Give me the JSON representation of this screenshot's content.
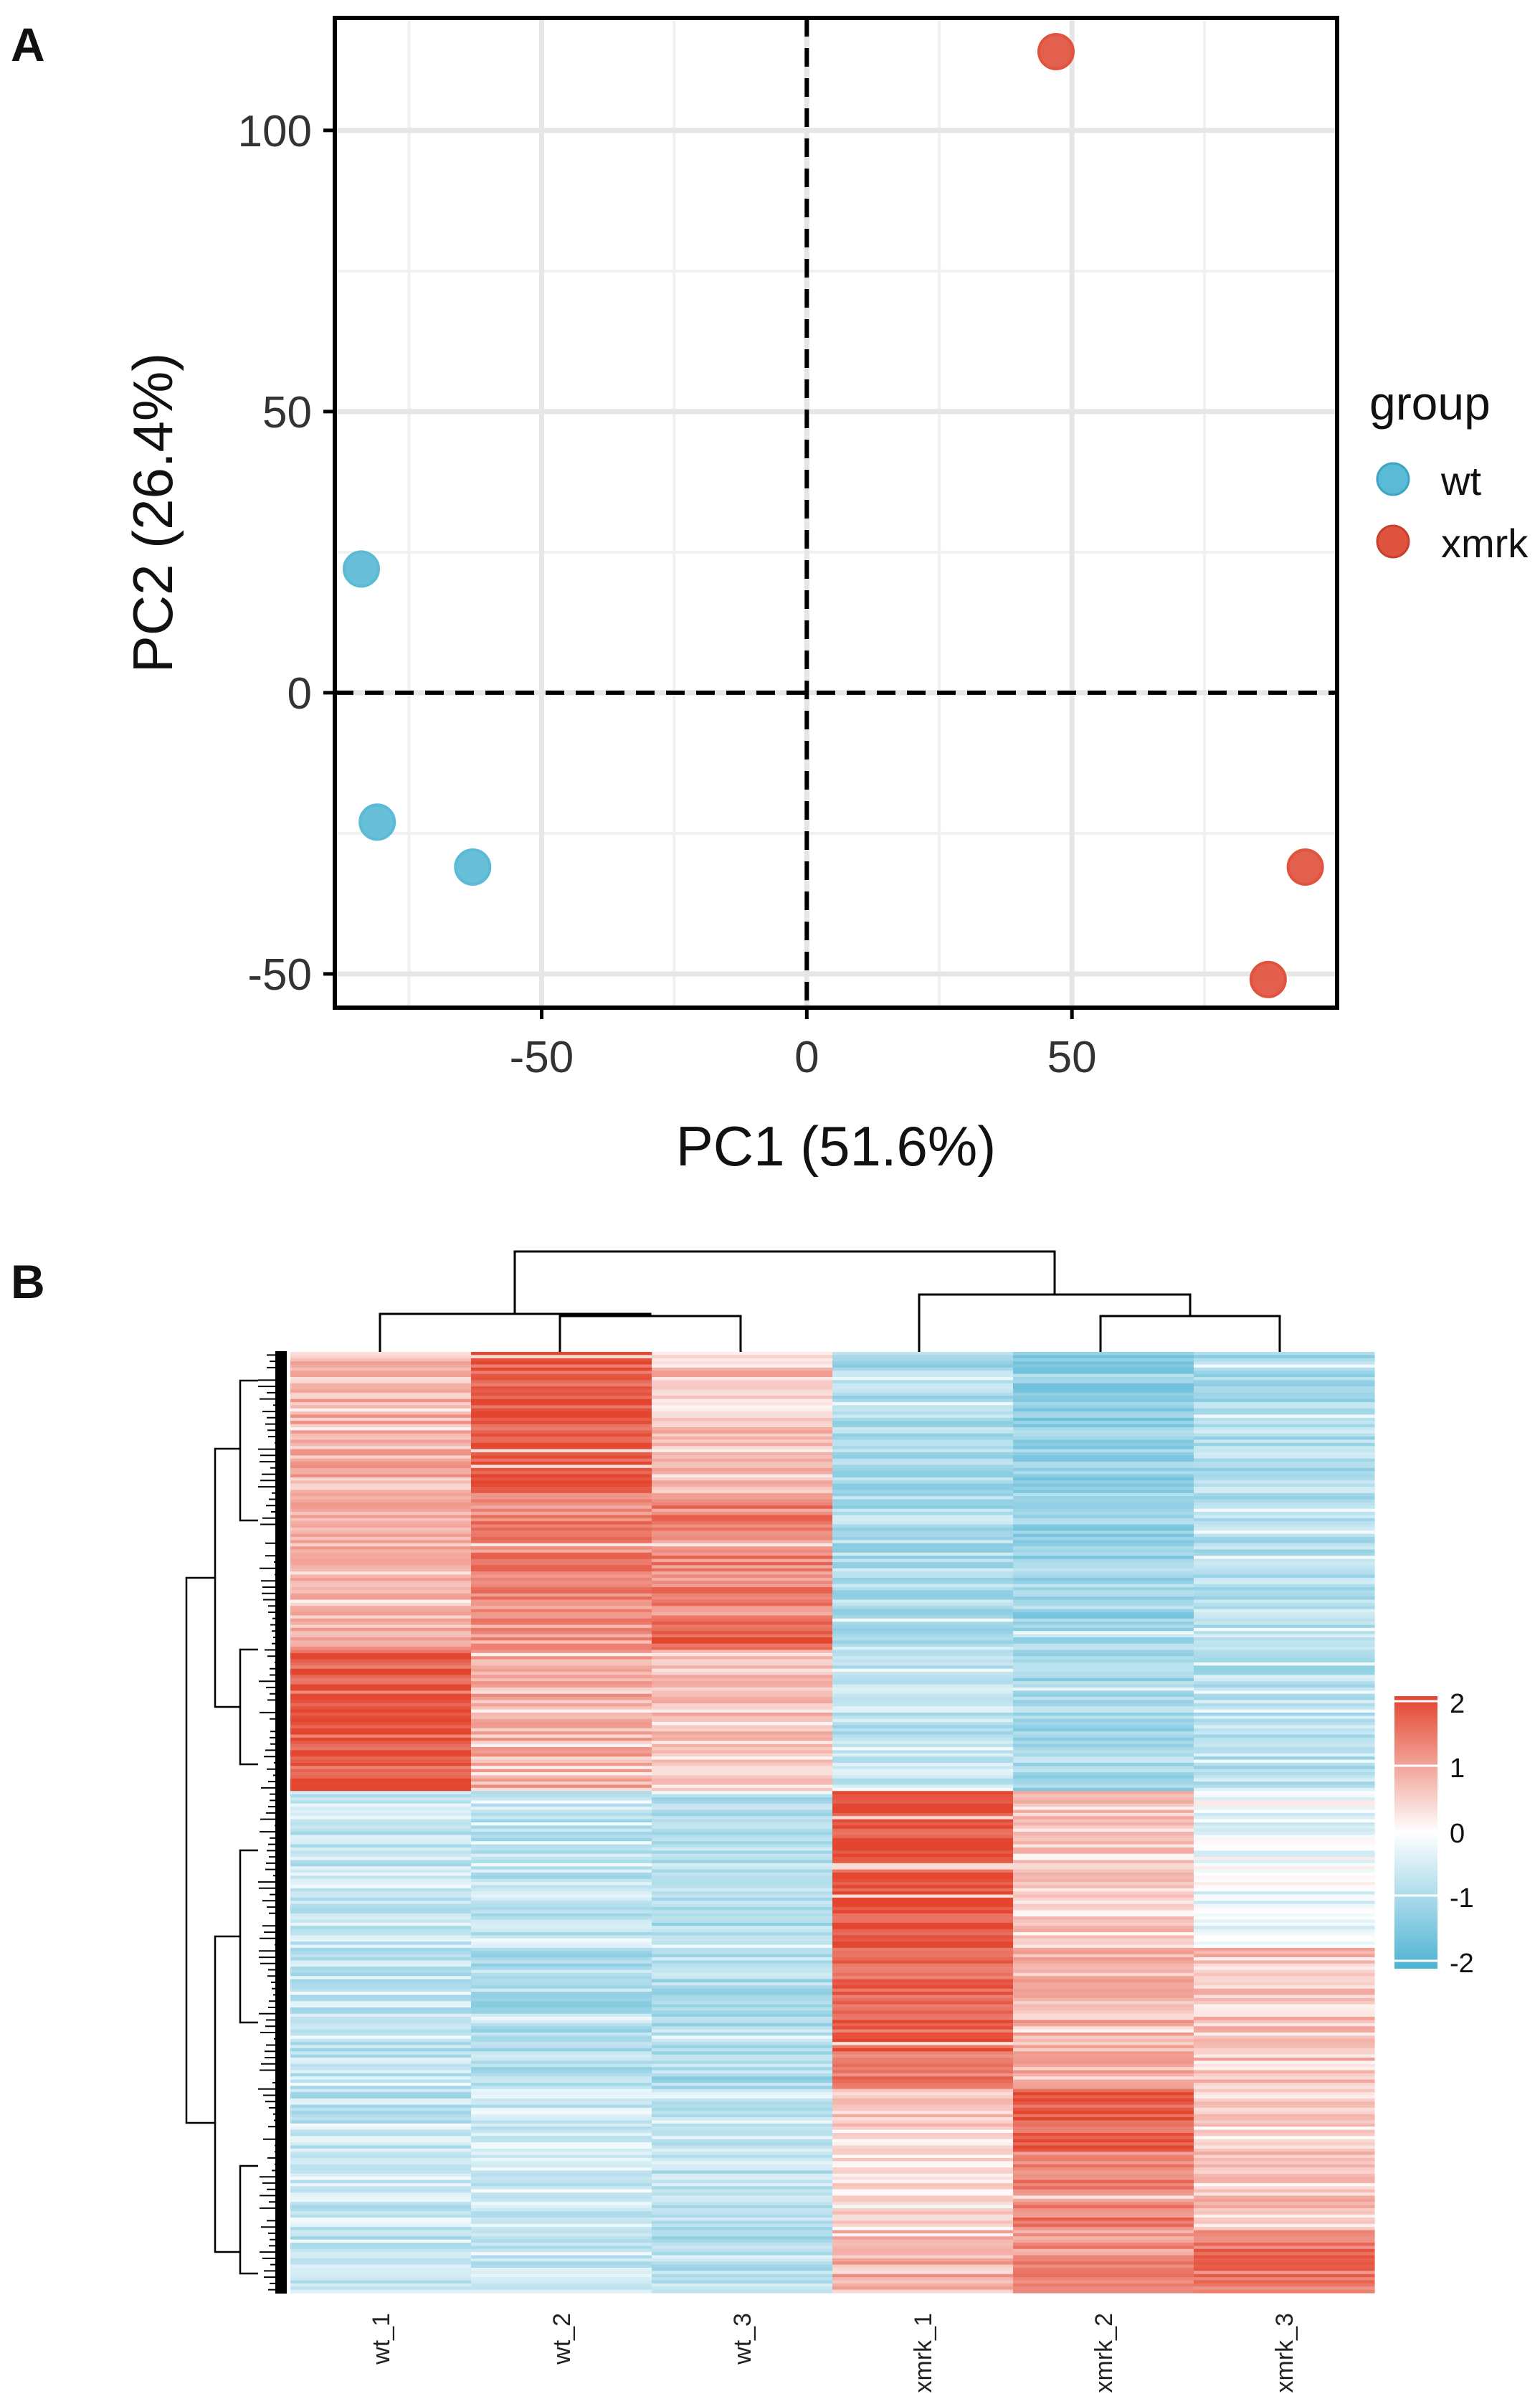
{
  "panels": {
    "a_label": "A",
    "b_label": "B"
  },
  "chart_data": [
    {
      "type": "scatter",
      "title": "",
      "xlabel": "PC1 (51.6%)",
      "ylabel": "PC2 (26.4%)",
      "xlim": [
        -89,
        100
      ],
      "ylim": [
        -56,
        120
      ],
      "xticks": [
        -50,
        0,
        50
      ],
      "yticks": [
        -50,
        0,
        50,
        100
      ],
      "xtick_labels": [
        "-50",
        "0",
        "50"
      ],
      "ytick_labels": [
        "-50",
        "0",
        "50",
        "100"
      ],
      "grid": true,
      "reference_lines": {
        "x": 0,
        "y": 0,
        "style": "dashed"
      },
      "legend": {
        "title": "group",
        "position": "right",
        "entries": [
          {
            "label": "wt",
            "color": "#5bbad5"
          },
          {
            "label": "xmrk",
            "color": "#e0533e"
          }
        ]
      },
      "series": [
        {
          "name": "wt",
          "color": "#5bbad5",
          "points": [
            {
              "x": -84,
              "y": 22
            },
            {
              "x": -81,
              "y": -23
            },
            {
              "x": -63,
              "y": -31
            }
          ]
        },
        {
          "name": "xmrk",
          "color": "#e0533e",
          "points": [
            {
              "x": 47,
              "y": 114
            },
            {
              "x": 94,
              "y": -31
            },
            {
              "x": 87,
              "y": -51
            }
          ]
        }
      ]
    },
    {
      "type": "heatmap",
      "columns": [
        "wt_1",
        "wt_2",
        "wt_3",
        "xmrk_1",
        "xmrk_2",
        "xmrk_3"
      ],
      "color_scale": {
        "low": "#4db2d3",
        "mid": "#ffffff",
        "high": "#e3452f",
        "min": -2,
        "max": 2,
        "ticks": [
          "2",
          "1",
          "0",
          "-1",
          "-2"
        ]
      },
      "column_dendrogram": "((wt_1,(wt_2,wt_3)),(xmrk_1,(xmrk_2,xmrk_3)))",
      "row_count": 300,
      "row_blocks": [
        {
          "rows": 45,
          "values": [
            0.8,
            1.8,
            0.6,
            -1.0,
            -1.2,
            -0.9
          ]
        },
        {
          "rows": 40,
          "values": [
            0.7,
            1.3,
            1.3,
            -0.9,
            -1.1,
            -0.8
          ]
        },
        {
          "rows": 10,
          "values": [
            0.8,
            1.1,
            1.7,
            -0.8,
            -1.0,
            -0.8
          ]
        },
        {
          "rows": 45,
          "values": [
            1.7,
            0.8,
            0.6,
            -0.7,
            -1.0,
            -0.8
          ]
        },
        {
          "rows": 50,
          "values": [
            -0.6,
            -0.7,
            -0.9,
            1.9,
            0.5,
            -0.2
          ]
        },
        {
          "rows": 45,
          "values": [
            -0.7,
            -0.9,
            -0.9,
            1.6,
            0.8,
            0.6
          ]
        },
        {
          "rows": 20,
          "values": [
            -0.7,
            -0.5,
            -0.6,
            0.5,
            1.8,
            0.4
          ]
        },
        {
          "rows": 25,
          "values": [
            -0.6,
            -0.5,
            -0.7,
            0.3,
            1.4,
            0.6
          ]
        },
        {
          "rows": 20,
          "values": [
            -0.7,
            -0.6,
            -0.8,
            0.8,
            1.2,
            1.5
          ]
        }
      ]
    }
  ]
}
